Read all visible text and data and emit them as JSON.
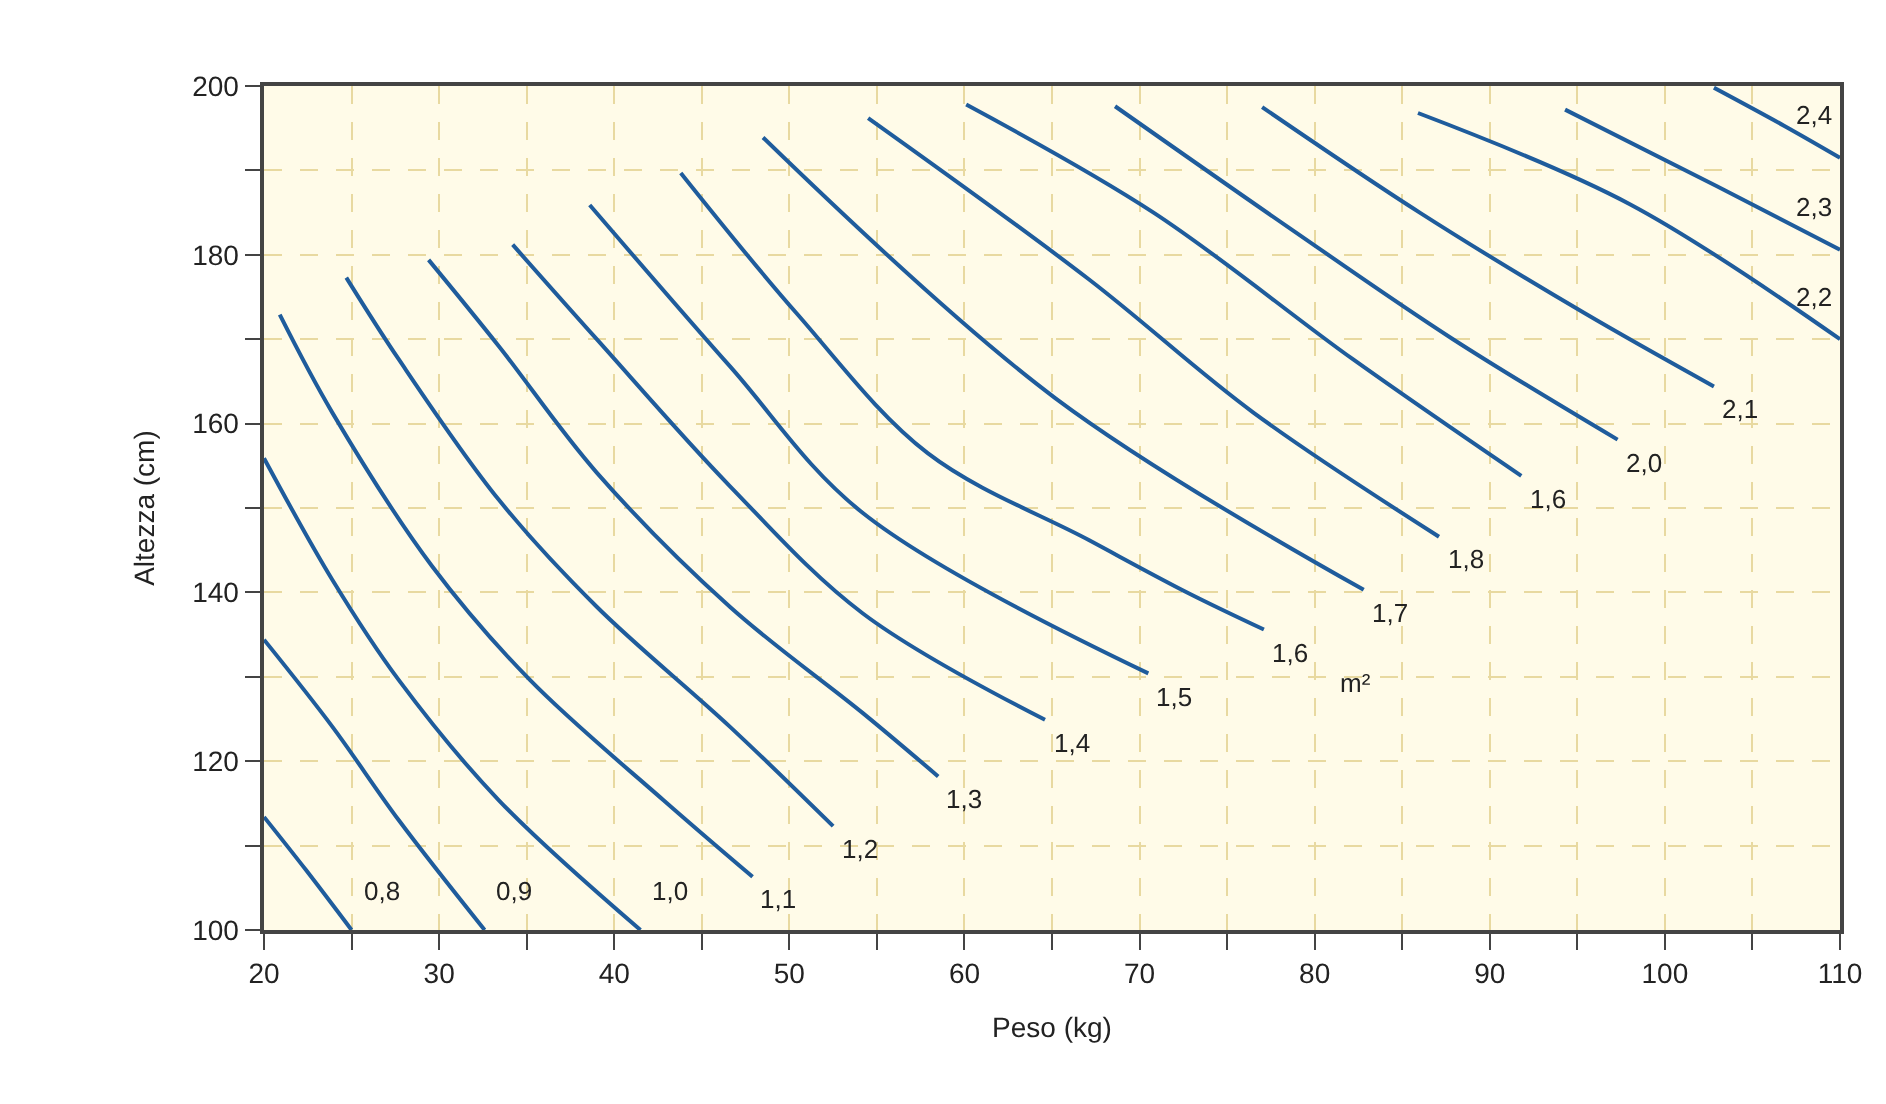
{
  "chart_data": {
    "type": "line",
    "xlabel": "Peso (kg)",
    "ylabel": "Altezza (cm)",
    "xlim": [
      20,
      110
    ],
    "ylim": [
      100,
      200
    ],
    "xticks": [
      20,
      {
        "value": 25,
        "label": null
      },
      30,
      {
        "value": 35,
        "label": null
      },
      40,
      {
        "value": 45,
        "label": null
      },
      50,
      {
        "value": 55,
        "label": null
      },
      60,
      {
        "value": 65,
        "label": null
      },
      70,
      {
        "value": 75,
        "label": null
      },
      80,
      {
        "value": 85,
        "label": null
      },
      90,
      {
        "value": 95,
        "label": null
      },
      100,
      {
        "value": 105,
        "label": null
      },
      110
    ],
    "yticks": [
      100,
      {
        "value": 110,
        "label": null
      },
      120,
      {
        "value": 130,
        "label": null
      },
      140,
      {
        "value": 150,
        "label": null
      },
      160,
      {
        "value": 170,
        "label": null
      },
      180,
      {
        "value": 190,
        "label": null
      },
      200
    ],
    "grid": true,
    "legend": false,
    "marker": "none",
    "line_style": "solid",
    "annotations": [
      "m²"
    ],
    "series": [
      {
        "name": "0,8",
        "color": "#1f5c9c",
        "x": [
          20,
          22.4,
          25
        ],
        "values": [
          113.4,
          107.1,
          100
        ]
      },
      {
        "name": "0,9",
        "color": "#1f5c9c",
        "x": [
          20,
          23.9,
          27.7,
          32.6
        ],
        "values": [
          134.4,
          124.1,
          113,
          100
        ]
      },
      {
        "name": "1,0",
        "color": "#1f5c9c",
        "x": [
          20,
          23.9,
          27.7,
          33.4,
          41.5
        ],
        "values": [
          155.9,
          141.5,
          129.6,
          115.4,
          100
        ]
      },
      {
        "name": "1,1",
        "color": "#1f5c9c",
        "x": [
          20.9,
          23.9,
          29.6,
          35.2,
          42.8,
          47.9
        ],
        "values": [
          172.9,
          161.3,
          143.1,
          129.6,
          115.4,
          106.3
        ]
      },
      {
        "name": "1,2",
        "color": "#1f5c9c",
        "x": [
          24.7,
          27.7,
          33.4,
          39,
          46.6,
          52.5
        ],
        "values": [
          177.3,
          167.6,
          151,
          138.3,
          124.1,
          112.3
        ]
      },
      {
        "name": "1,3",
        "color": "#1f5c9c",
        "x": [
          29.4,
          33.4,
          39,
          46.6,
          54.2,
          58.5
        ],
        "values": [
          179.4,
          169.2,
          154.2,
          138.3,
          125.7,
          118.2
        ]
      },
      {
        "name": "1,4",
        "color": "#1f5c9c",
        "x": [
          34.2,
          39,
          46.6,
          54.2,
          64.6
        ],
        "values": [
          181.2,
          170,
          152.6,
          137.5,
          124.9
        ]
      },
      {
        "name": "1,5",
        "color": "#1f5c9c",
        "x": [
          38.6,
          46.6,
          54.2,
          70.5
        ],
        "values": [
          185.9,
          166.8,
          149.4,
          130.4
        ]
      },
      {
        "name": "1,6",
        "color": "#1f5c9c",
        "x": [
          43.8,
          50.4,
          57.9,
          67.1,
          72.8,
          77.1
        ],
        "values": [
          189.7,
          173.1,
          156.5,
          146.2,
          139.9,
          135.6
        ]
      },
      {
        "name": "1,7",
        "color": "#1f5c9c",
        "x": [
          48.5,
          65.2,
          82.8
        ],
        "values": [
          193.9,
          163,
          140.3
        ]
      },
      {
        "name": "1,8",
        "color": "#1f5c9c",
        "x": [
          54.5,
          67.1,
          76.5,
          87.1
        ],
        "values": [
          196.2,
          177.1,
          161.3,
          146.6
        ]
      },
      {
        "name": "1,6",
        "color": "#1f5c9c",
        "x": [
          60.1,
          70.8,
          82.2,
          91.8
        ],
        "values": [
          197.8,
          185,
          167.6,
          153.8
        ]
      },
      {
        "name": "2,0",
        "color": "#1f5c9c",
        "x": [
          68.6,
          78.4,
          87.9,
          97.3
        ],
        "values": [
          197.6,
          183.4,
          170,
          158.1
        ]
      },
      {
        "name": "2,1",
        "color": "#1f5c9c",
        "x": [
          77,
          86,
          95.4,
          102.8
        ],
        "values": [
          197.5,
          185,
          173.1,
          164.4
        ]
      },
      {
        "name": "2,2",
        "color": "#1f5c9c",
        "x": [
          85.9,
          98,
          110
        ],
        "values": [
          196.8,
          186,
          170
        ]
      },
      {
        "name": "2,3",
        "color": "#1f5c9c",
        "x": [
          94.3,
          103,
          110
        ],
        "values": [
          197.2,
          188.1,
          180.6
        ]
      },
      {
        "name": "2,4",
        "color": "#1f5c9c",
        "x": [
          102.8,
          106.8,
          110
        ],
        "values": [
          199.8,
          195.3,
          191.5
        ]
      }
    ]
  }
}
